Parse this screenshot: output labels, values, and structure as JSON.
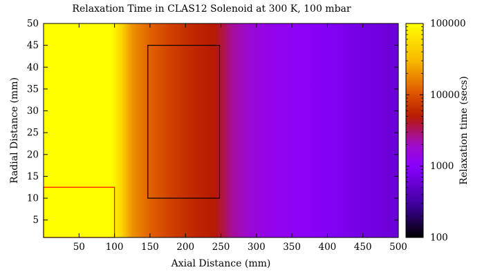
{
  "chart_data": {
    "type": "heatmap",
    "title": "Relaxation Time in CLAS12 Solenoid at 300 K, 100 mbar",
    "xlabel": "Axial Distance (mm)",
    "ylabel": "Radial Distance (mm)",
    "colorbar_label": "Relaxation time (secs)",
    "xlim": [
      0,
      500
    ],
    "ylim": [
      1,
      50
    ],
    "x_ticks": [
      50,
      100,
      150,
      200,
      250,
      300,
      350,
      400,
      450,
      500
    ],
    "y_ticks": [
      5,
      10,
      15,
      20,
      25,
      30,
      35,
      40,
      45,
      50
    ],
    "colorbar_scale": "log",
    "colorbar_range": [
      100,
      100000
    ],
    "colorbar_ticks": [
      100,
      1000,
      10000,
      100000
    ],
    "colormap": [
      {
        "v": 100,
        "color": "#000000"
      },
      {
        "v": 300,
        "color": "#4000a0"
      },
      {
        "v": 1000,
        "color": "#8a00ff"
      },
      {
        "v": 2000,
        "color": "#a00cc8"
      },
      {
        "v": 5000,
        "color": "#b71a00"
      },
      {
        "v": 10000,
        "color": "#dc5000"
      },
      {
        "v": 30000,
        "color": "#f8b800"
      },
      {
        "v": 100000,
        "color": "#ffff00"
      }
    ],
    "profile_along_x": {
      "x": [
        0,
        95,
        110,
        125,
        150,
        180,
        210,
        240,
        255,
        265,
        290,
        320,
        360,
        400,
        450,
        500
      ],
      "values": [
        100000,
        100000,
        50000,
        20000,
        12000,
        8000,
        6000,
        5000,
        3500,
        2500,
        1700,
        1300,
        1100,
        900,
        700,
        600
      ]
    },
    "regions": [
      {
        "name": "red-region",
        "x": [
          0,
          100
        ],
        "y": [
          1,
          12.5
        ],
        "color": "#ff0000"
      },
      {
        "name": "black-region",
        "x": [
          147,
          248
        ],
        "y": [
          10,
          45
        ],
        "color": "#000000"
      }
    ],
    "grid": false,
    "legend": "none"
  }
}
